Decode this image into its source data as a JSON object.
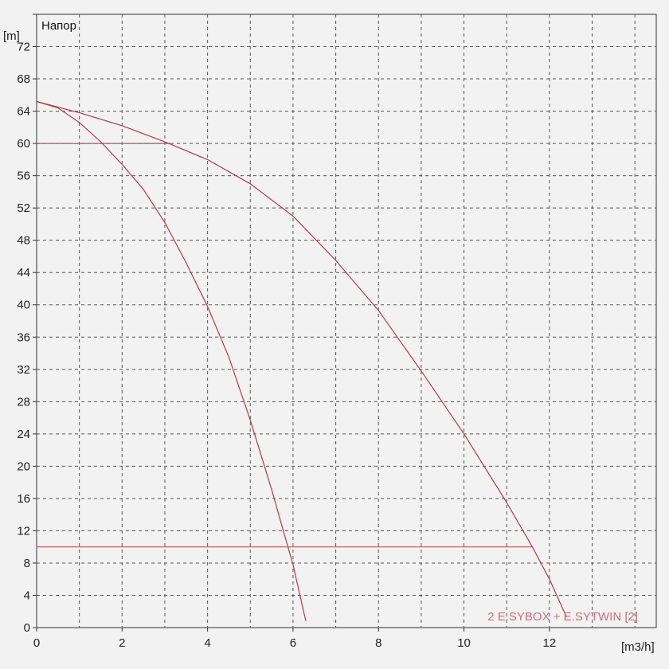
{
  "chart_data": {
    "type": "line",
    "title": "Напор",
    "xlabel": "[m3/h]",
    "ylabel": "[m]",
    "xlim": [
      0,
      14.5
    ],
    "ylim": [
      0,
      76
    ],
    "x_ticks": [
      0,
      2,
      4,
      6,
      8,
      10,
      12
    ],
    "y_ticks": [
      0,
      4,
      8,
      12,
      16,
      20,
      24,
      28,
      32,
      36,
      40,
      44,
      48,
      52,
      56,
      60,
      64,
      68,
      72
    ],
    "grid": true,
    "legend": {
      "text": "2 E.SYBOX + E.SYTWIN [2]",
      "placement": "bottom-right"
    },
    "colors": {
      "curve": "#b33a4a",
      "reference_line": "#c0505a",
      "grid": "#555555"
    },
    "series": [
      {
        "points": [
          [
            0,
            65.2
          ],
          [
            0.5,
            64.4
          ],
          [
            1,
            62.6
          ],
          [
            1.5,
            60.2
          ],
          [
            2,
            57.4
          ],
          [
            2.5,
            54.3
          ],
          [
            3,
            50.2
          ],
          [
            3.5,
            45.2
          ],
          [
            4,
            39.8
          ],
          [
            4.5,
            33.5
          ],
          [
            5,
            25.7
          ],
          [
            5.5,
            17.1
          ],
          [
            5.8,
            11.5
          ],
          [
            6,
            7.8
          ],
          [
            6.3,
            0.8
          ]
        ]
      },
      {
        "points": [
          [
            0,
            65.2
          ],
          [
            1,
            63.8
          ],
          [
            2,
            62.2
          ],
          [
            3,
            60.2
          ],
          [
            4,
            58
          ],
          [
            5,
            55
          ],
          [
            6,
            51
          ],
          [
            7,
            45.5
          ],
          [
            8,
            39.3
          ],
          [
            9,
            31.8
          ],
          [
            10,
            24
          ],
          [
            11,
            15.5
          ],
          [
            11.6,
            10
          ],
          [
            12,
            6
          ],
          [
            12.4,
            1.3
          ]
        ]
      },
      {
        "points": [
          [
            0,
            60
          ],
          [
            3.15,
            60
          ]
        ]
      },
      {
        "points": [
          [
            0,
            10
          ],
          [
            11.6,
            10
          ]
        ]
      }
    ]
  }
}
